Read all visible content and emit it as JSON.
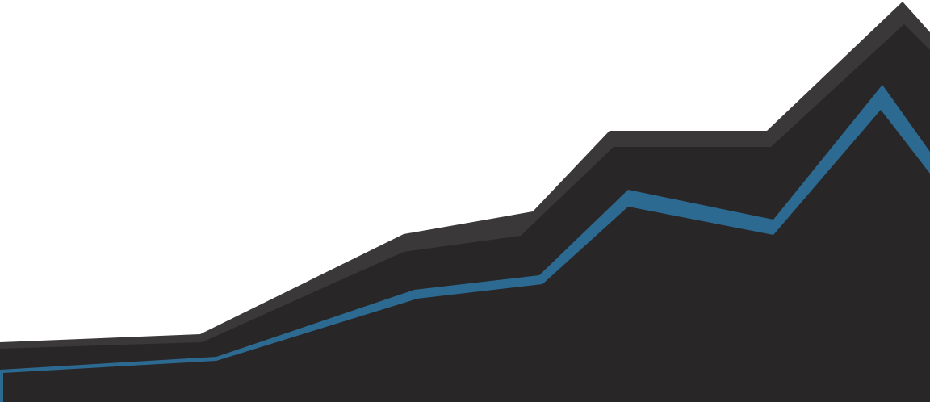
{
  "colors": {
    "background": "#ffffff",
    "back_layer": "#3a3839",
    "middle_layer": "#282627",
    "accent_band": "#2c6a91",
    "front_layer": "#282627"
  }
}
